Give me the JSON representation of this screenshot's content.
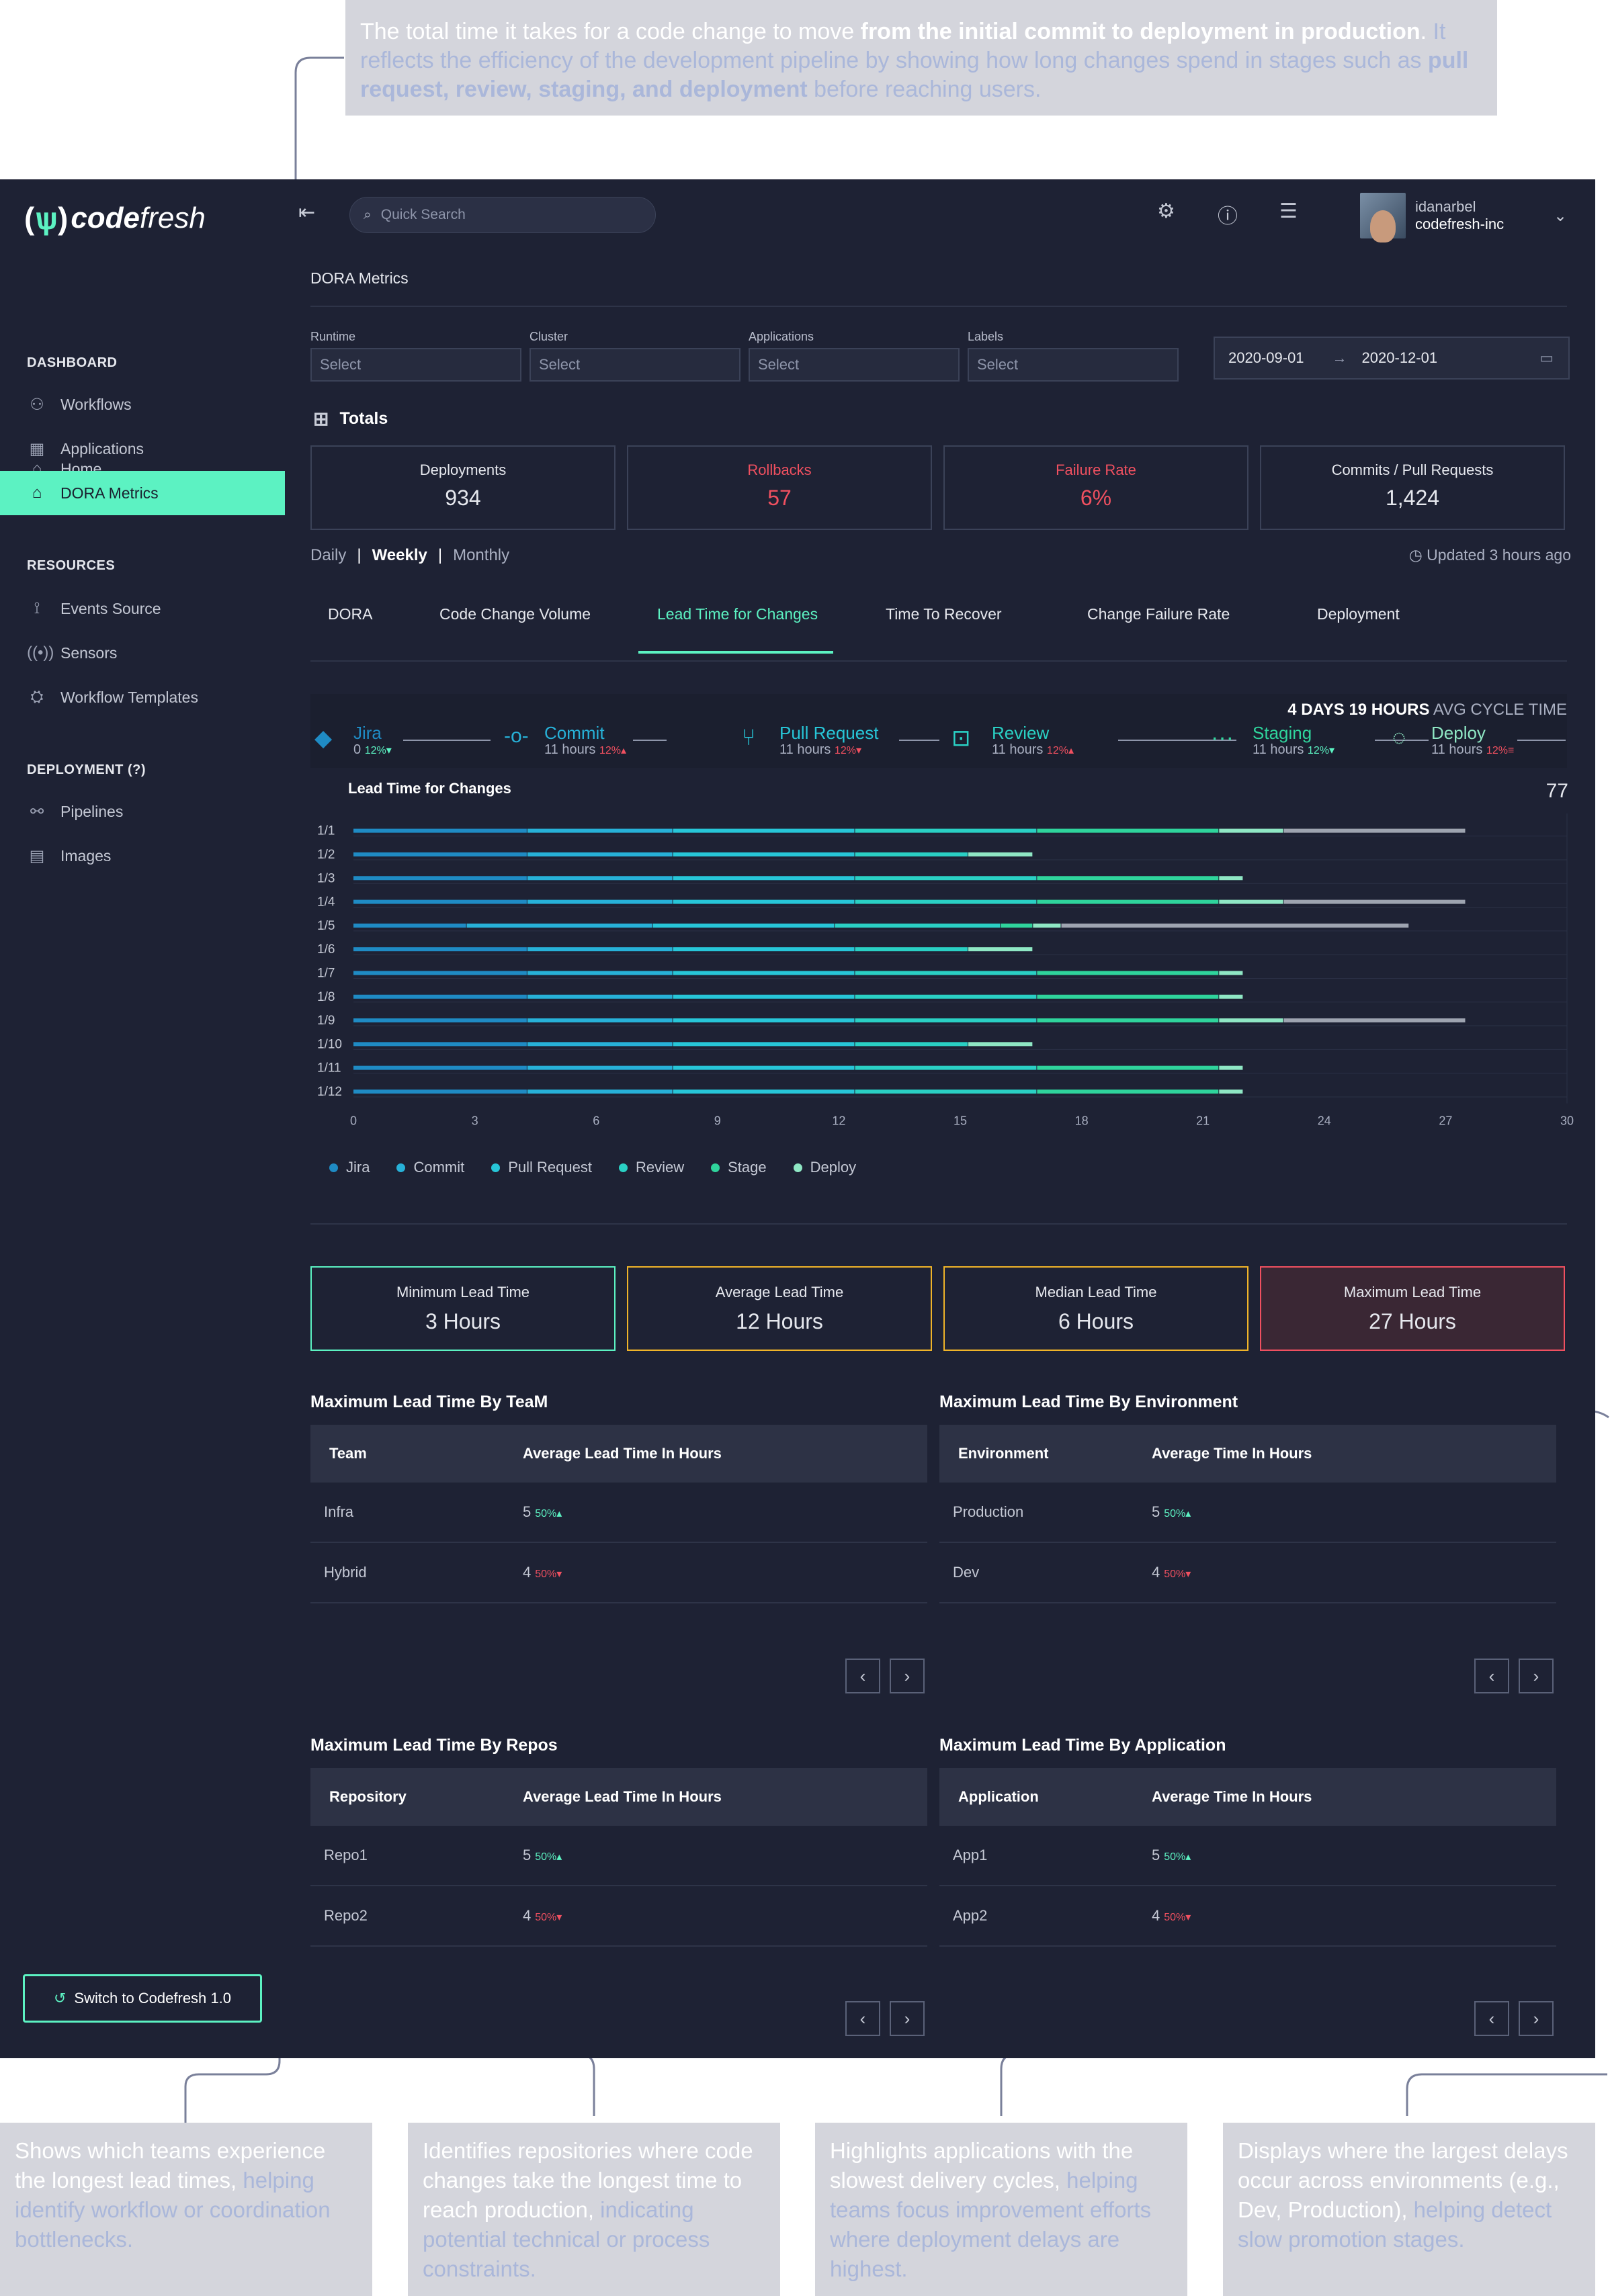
{
  "annotations": {
    "top": {
      "p1_light_a": "The total time it takes for a code change to move ",
      "p1_bold": "from the initial commit to deployment in production",
      "p1_light_b": ".",
      "p2_a": "It reflects the efficiency of the development pipeline by showing how long changes spend in stages such as ",
      "p2_bold": "pull request, review, staging, and deployment",
      "p2_b": " before reaching users."
    },
    "teams": {
      "a": "Shows which teams experience the longest lead times, ",
      "b": "helping identify workflow or coordination bottlenecks."
    },
    "repos": {
      "a": "Identifies repositories where code changes take the longest time to reach production, ",
      "b": "indicating potential technical or process constraints."
    },
    "apps": {
      "a": "Highlights applications with the slowest delivery cycles, ",
      "b": "helping teams focus improvement efforts where deployment delays are highest."
    },
    "envs": {
      "a": "Displays where the largest delays occur across environments (e.g., Dev, Production), ",
      "b": "helping detect slow promotion stages."
    }
  },
  "colors": {
    "accent": "#5cf2c2",
    "danger": "#f05060",
    "jira": "#1f8bc4",
    "commit": "#27b1d8",
    "pull_request": "#27c6d8",
    "review": "#2ad0c4",
    "stage": "#2fd49c",
    "deploy": "#8fe7c4"
  },
  "app": {
    "logo_word_a": "code",
    "logo_word_b": "fresh",
    "search_placeholder": "Quick Search",
    "user": {
      "name": "idanarbel",
      "org": "codefresh-inc"
    },
    "switch_label": "Switch to Codefresh 1.0"
  },
  "sidebar": {
    "home": "Home",
    "dashboard_header": "DASHBOARD",
    "workflows": "Workflows",
    "applications": "Applications",
    "dora": "DORA Metrics",
    "resources_header": "RESOURCES",
    "events": "Events Source",
    "sensors": "Sensors",
    "templates": "Workflow Templates",
    "deployment_header": "DEPLOYMENT (?)",
    "pipelines": "Pipelines",
    "images": "Images"
  },
  "page": {
    "title": "DORA Metrics",
    "filters": [
      {
        "label": "Runtime",
        "value": "Select"
      },
      {
        "label": "Cluster",
        "value": "Select"
      },
      {
        "label": "Applications",
        "value": "Select"
      },
      {
        "label": "Labels",
        "value": "Select"
      }
    ],
    "date_from": "2020-09-01",
    "date_to": "2020-12-01",
    "totals_title": "Totals",
    "totals": [
      {
        "label": "Deployments",
        "value": "934"
      },
      {
        "label": "Rollbacks",
        "value": "57"
      },
      {
        "label": "Failure Rate",
        "value": "6%"
      },
      {
        "label": "Commits / Pull Requests",
        "value": "1,424"
      }
    ],
    "period": {
      "daily": "Daily",
      "weekly": "Weekly",
      "monthly": "Monthly"
    },
    "updated": "Updated 3 hours ago",
    "tabs": [
      "DORA",
      "Code Change Volume",
      "Lead Time for Changes",
      "Time To Recover",
      "Change Failure Rate",
      "Deployment"
    ],
    "avg_cycle_value": "4  DAYS 19 HOURS",
    "avg_cycle_label": " AVG CYCLE TIME",
    "stages": [
      {
        "name": "Jira",
        "sub": "0",
        "pct": "12%"
      },
      {
        "name": "Commit",
        "sub": "11 hours",
        "pct": "12%"
      },
      {
        "name": "Pull Request",
        "sub": "11 hours",
        "pct": "12%"
      },
      {
        "name": "Review",
        "sub": "11 hours",
        "pct": "12%"
      },
      {
        "name": "Staging",
        "sub": "11 hours",
        "pct": "12%"
      },
      {
        "name": "Deploy",
        "sub": "11 hours",
        "pct": "12%"
      }
    ],
    "lead_cards": [
      {
        "label": "Minimum Lead Time",
        "value": "3 Hours"
      },
      {
        "label": "Average Lead Time",
        "value": "12 Hours"
      },
      {
        "label": "Median Lead Time",
        "value": "6 Hours"
      },
      {
        "label": "Maximum Lead Time",
        "value": "27 Hours"
      }
    ],
    "team_table": {
      "title": "Maximum Lead Time By TeaM",
      "h1": "Team",
      "h2": "Average Lead Time In Hours",
      "rows": [
        {
          "name": "Infra",
          "val": "5",
          "pct": "50%"
        },
        {
          "name": "Hybrid",
          "val": "4",
          "pct": "50%"
        }
      ]
    },
    "env_table": {
      "title": "Maximum Lead Time By Environment",
      "h1": "Environment",
      "h2": "Average Time In Hours",
      "rows": [
        {
          "name": "Production",
          "val": "5",
          "pct": "50%"
        },
        {
          "name": "Dev",
          "val": "4",
          "pct": "50%"
        }
      ]
    },
    "repo_table": {
      "title": "Maximum Lead Time By Repos",
      "h1": "Repository",
      "h2": "Average Lead Time In Hours",
      "rows": [
        {
          "name": "Repo1",
          "val": "5",
          "pct": "50%"
        },
        {
          "name": "Repo2",
          "val": "4",
          "pct": "50%"
        }
      ]
    },
    "app_table": {
      "title": "Maximum Lead Time By Application",
      "h1": "Application",
      "h2": "Average Time In Hours",
      "rows": [
        {
          "name": "App1",
          "val": "5",
          "pct": "50%"
        },
        {
          "name": "App2",
          "val": "4",
          "pct": "50%"
        }
      ]
    }
  },
  "chart_data": {
    "type": "bar",
    "orientation": "horizontal-stacked",
    "title": "Lead Time for Changes",
    "count_label": "77",
    "categories": [
      "1/1",
      "1/2",
      "1/3",
      "1/4",
      "1/5",
      "1/6",
      "1/7",
      "1/8",
      "1/9",
      "1/10",
      "1/11",
      "1/12"
    ],
    "x_ticks": [
      0,
      3,
      6,
      9,
      12,
      15,
      18,
      21,
      24,
      27,
      30
    ],
    "xlim": [
      0,
      30
    ],
    "series": [
      {
        "name": "Jira",
        "values": [
          4.3,
          4.3,
          4.3,
          4.3,
          2.8,
          4.3,
          4.3,
          4.3,
          4.3,
          4.3,
          4.3,
          4.3
        ]
      },
      {
        "name": "Commit",
        "values": [
          3.6,
          3.6,
          3.6,
          3.6,
          4.6,
          3.6,
          3.6,
          3.6,
          3.6,
          3.6,
          3.6,
          3.6
        ]
      },
      {
        "name": "Pull Request",
        "values": [
          4.5,
          4.5,
          4.5,
          4.5,
          4.5,
          4.5,
          4.5,
          4.5,
          4.5,
          4.5,
          4.5,
          4.5
        ]
      },
      {
        "name": "Review",
        "values": [
          4.5,
          2.8,
          4.5,
          4.5,
          4.1,
          2.8,
          4.5,
          4.5,
          4.5,
          2.8,
          4.5,
          4.5
        ]
      },
      {
        "name": "Stage",
        "values": [
          4.5,
          0,
          4.5,
          4.5,
          0.8,
          0,
          4.5,
          4.5,
          4.5,
          0,
          4.5,
          4.5
        ]
      },
      {
        "name": "Deploy",
        "values": [
          1.6,
          1.6,
          0.6,
          1.6,
          0.7,
          1.6,
          0.6,
          0.6,
          1.6,
          1.6,
          0.6,
          0.6
        ]
      },
      {
        "name": "",
        "values": [
          4.5,
          0,
          0,
          4.5,
          8.6,
          0,
          0,
          0,
          4.5,
          0,
          0,
          0
        ]
      }
    ],
    "legend": [
      "Jira",
      "Commit",
      "Pull Request",
      "Review",
      "Stage",
      "Deploy"
    ],
    "grid": true
  }
}
